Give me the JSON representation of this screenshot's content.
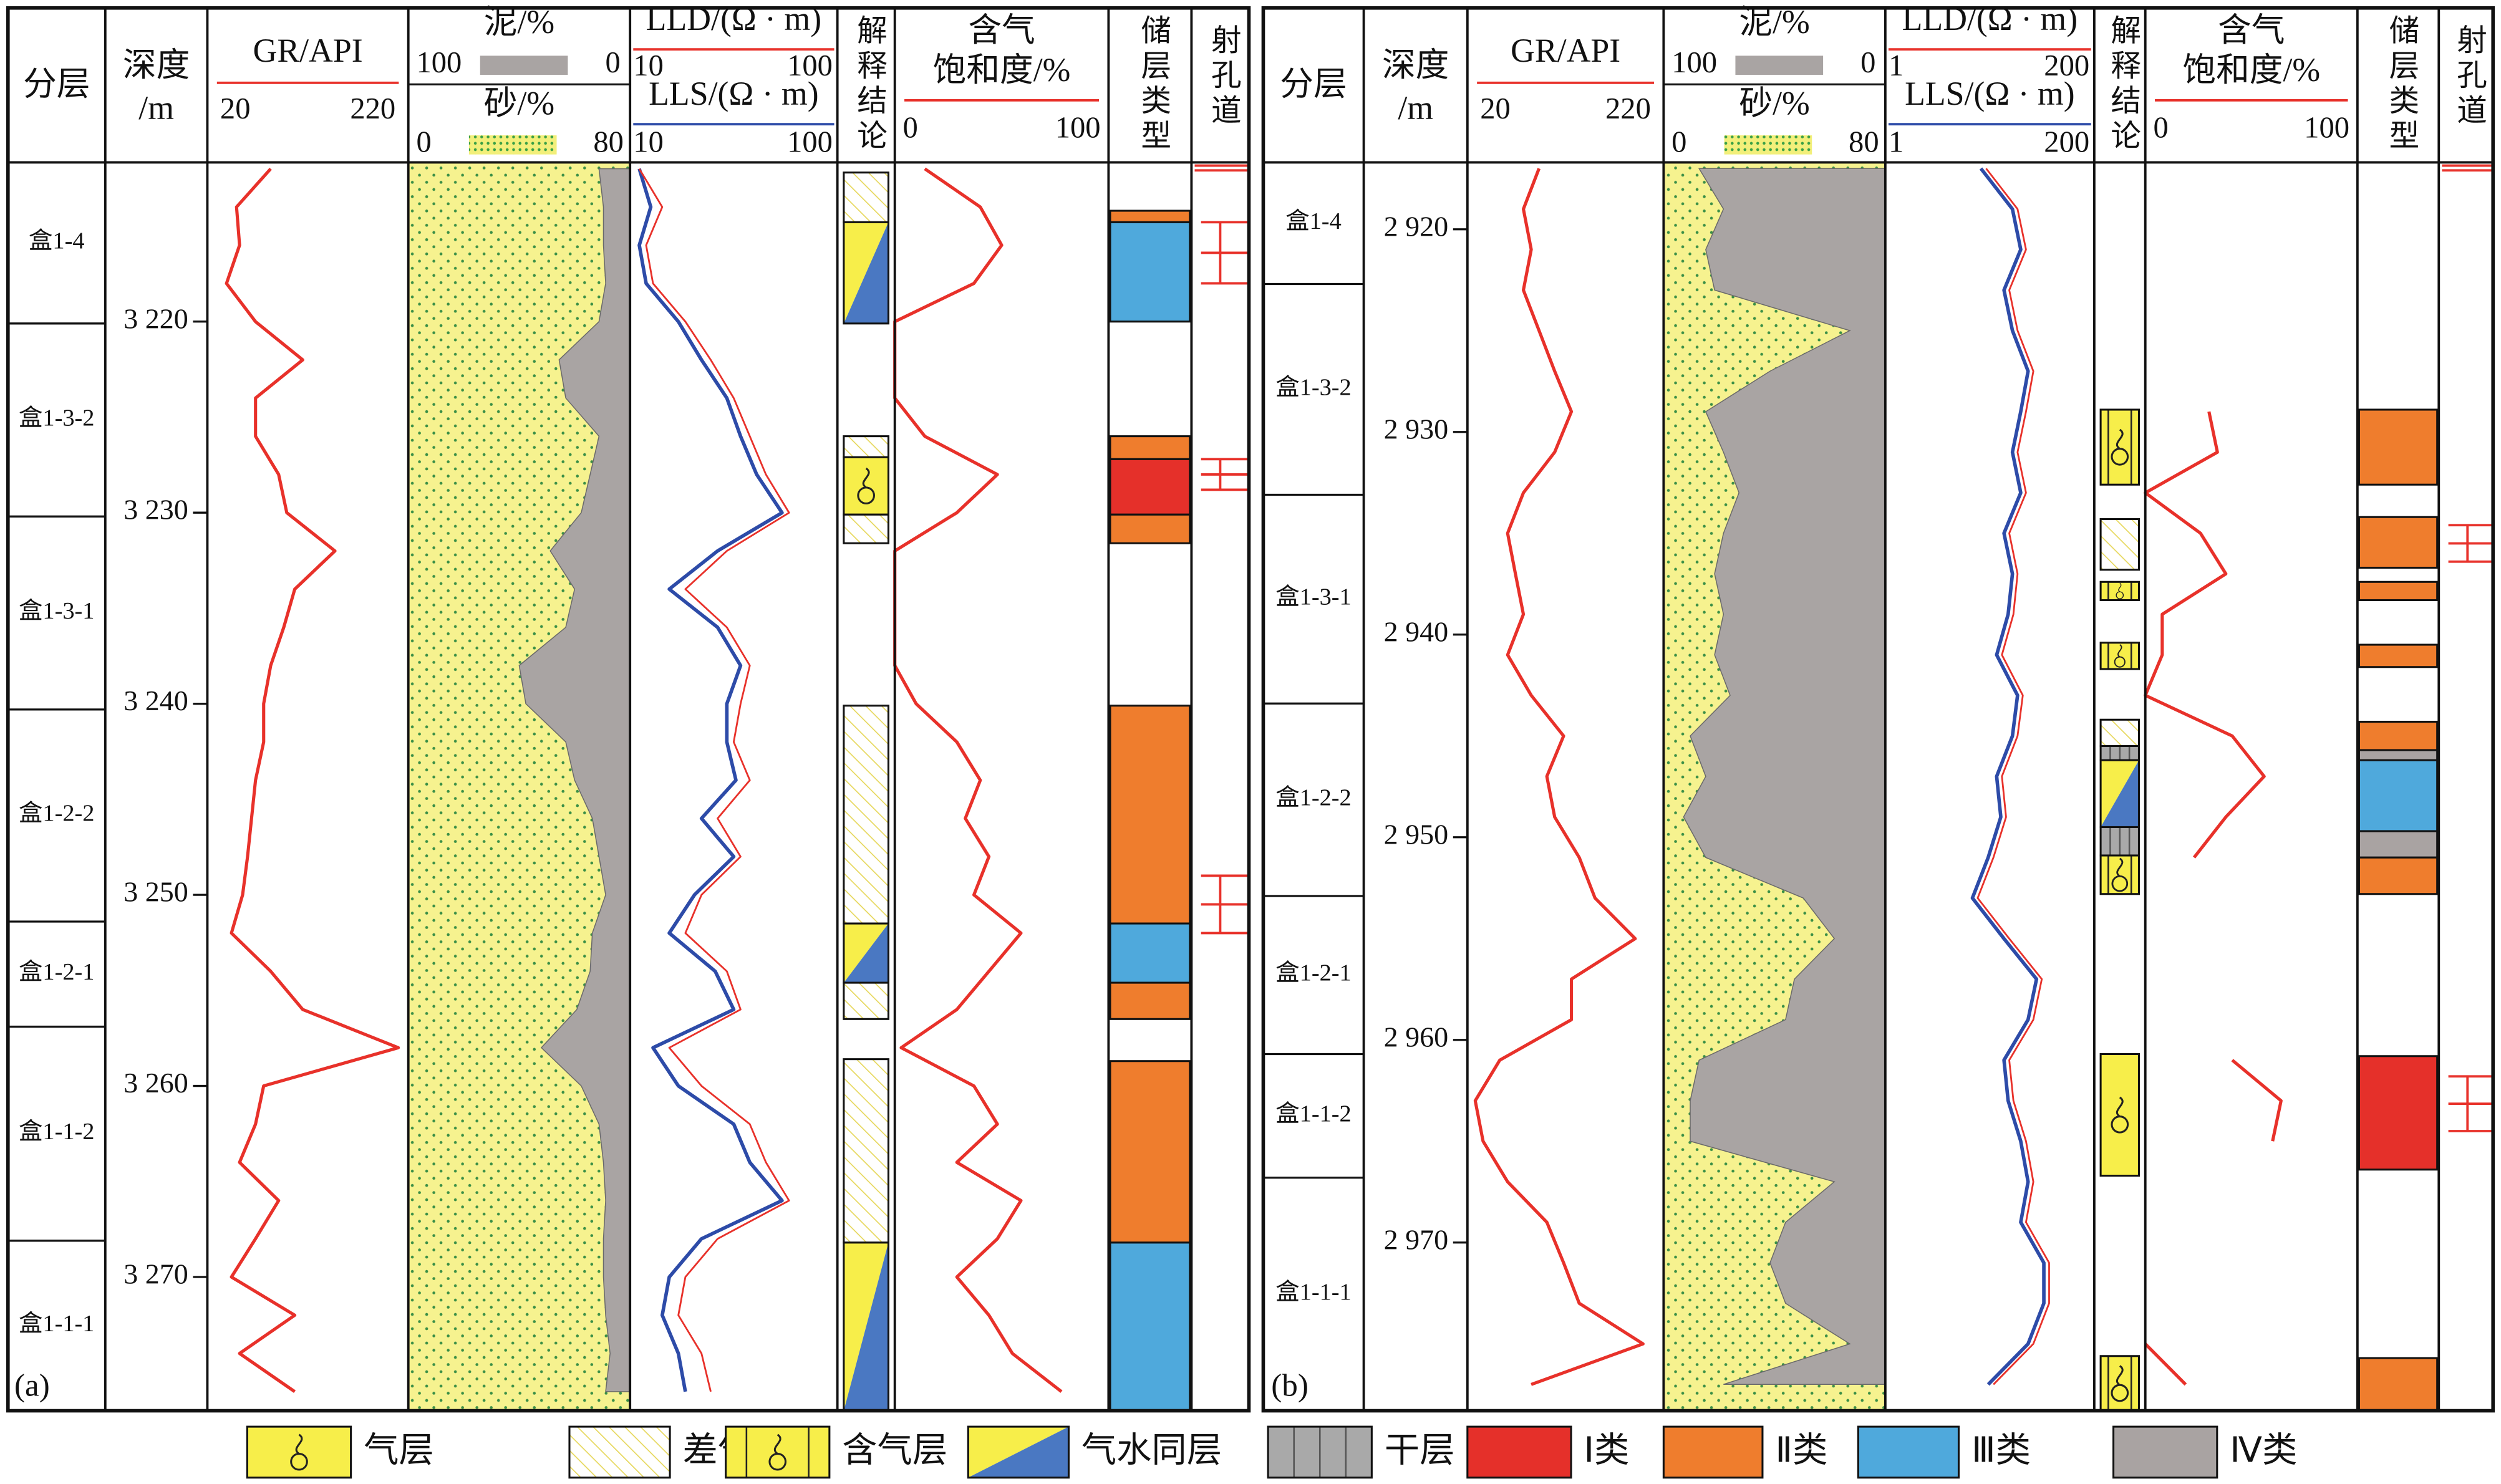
{
  "headers": {
    "zone": "分层",
    "depth": [
      "深度",
      "/m"
    ],
    "gr": "GR/API",
    "shale": "泥/%",
    "sand": "砂/%",
    "lld": "LLD/(Ω · m)",
    "lls": "LLS/(Ω · m)",
    "interpretation": "解释结论",
    "sg": [
      "含气",
      "饱和度/%"
    ],
    "reservoir": "储层类型",
    "perforation": "射孔道"
  },
  "legend": [
    {
      "name": "气层"
    },
    {
      "name": "差气层"
    },
    {
      "name": "含气层"
    },
    {
      "name": "气水同层"
    },
    {
      "name": "干层"
    },
    {
      "name": "Ⅰ类",
      "color": "#e5302a"
    },
    {
      "name": "Ⅱ类",
      "color": "#ef7d2d"
    },
    {
      "name": "Ⅲ类",
      "color": "#4fa9dc"
    },
    {
      "name": "Ⅳ类",
      "color": "#a9a3a2"
    }
  ],
  "chart_data": [
    {
      "type": "well-log",
      "label": "(a)",
      "ylim": [
        3211.67,
        3277
      ],
      "depth_ticks": [
        {
          "value": 3220,
          "label": "3 220"
        },
        {
          "value": 3230,
          "label": "3 230"
        },
        {
          "value": 3240,
          "label": "3 240"
        },
        {
          "value": 3250,
          "label": "3 250"
        },
        {
          "value": 3260,
          "label": "3 260"
        },
        {
          "value": 3270,
          "label": "3 270"
        }
      ],
      "zones": [
        {
          "name": "盒1-4",
          "base": 3220.1
        },
        {
          "name": "盒1-3-2",
          "base": 3230.2
        },
        {
          "name": "盒1-3-1",
          "base": 3240.3
        },
        {
          "name": "盒1-2-2",
          "base": 3251.4
        },
        {
          "name": "盒1-2-1",
          "base": 3256.9
        },
        {
          "name": "盒1-1-2",
          "base": 3268.1
        },
        {
          "name": "盒1-1-1"
        }
      ],
      "depth": [
        3212,
        3214,
        3216,
        3218,
        3220,
        3222,
        3224,
        3226,
        3228,
        3230,
        3232,
        3234,
        3236,
        3238,
        3240,
        3242,
        3244,
        3246,
        3248,
        3250,
        3252,
        3254,
        3256,
        3258,
        3260,
        3262,
        3264,
        3266,
        3268,
        3270,
        3272,
        3274,
        3276
      ],
      "gr": {
        "xlim": [
          20,
          220
        ],
        "color": "#e8312a",
        "values": [
          83,
          49,
          52,
          39,
          68,
          115,
          68,
          68,
          91,
          99,
          147,
          107,
          96,
          83,
          76,
          76,
          68,
          64,
          60,
          55,
          44,
          83,
          115,
          210,
          76,
          68,
          52,
          91,
          68,
          44,
          107,
          52,
          107
        ]
      },
      "shale": {
        "xlim": [
          100,
          0
        ],
        "color": "#a9a4a3",
        "values": [
          14,
          12,
          12,
          11,
          14,
          32,
          29,
          14,
          18,
          22,
          36,
          25,
          29,
          50,
          47,
          29,
          25,
          17,
          14,
          11,
          17,
          18,
          24,
          40,
          22,
          14,
          12,
          11,
          12,
          12,
          11,
          9,
          11
        ]
      },
      "sand": {
        "xlim": [
          0,
          80
        ],
        "color": "#f6f28f"
      },
      "lld": {
        "xlim": [
          10,
          100
        ],
        "color": "#e8312a",
        "values": [
          14,
          24,
          17,
          20,
          34,
          45,
          55,
          62,
          69,
          79,
          52,
          34,
          52,
          62,
          58,
          55,
          62,
          48,
          58,
          41,
          34,
          52,
          58,
          27,
          41,
          62,
          69,
          79,
          48,
          34,
          31,
          41,
          45
        ]
      },
      "lls": {
        "xlim": [
          10,
          100
        ],
        "color": "#2d4ba8",
        "values": [
          14,
          19,
          14,
          17,
          31,
          41,
          52,
          58,
          65,
          76,
          48,
          27,
          48,
          58,
          52,
          52,
          56,
          41,
          55,
          38,
          27,
          47,
          55,
          20,
          31,
          55,
          62,
          76,
          41,
          27,
          24,
          31,
          34
        ]
      },
      "sg": {
        "xlim": [
          0,
          100
        ],
        "color": "#e8312a",
        "values": [
          14,
          40,
          50,
          37,
          0,
          0,
          0,
          14,
          48,
          29,
          0,
          0,
          0,
          0,
          10,
          29,
          40,
          33,
          44,
          37,
          59,
          44,
          29,
          3,
          37,
          48,
          29,
          59,
          48,
          29,
          44,
          55,
          78
        ]
      },
      "interpretation": [
        {
          "type": "差气层",
          "from": 3212.2,
          "to": 3214.8
        },
        {
          "type": "气水同层",
          "from": 3214.8,
          "to": 3220.1
        },
        {
          "type": "差气层",
          "from": 3226,
          "to": 3227.1
        },
        {
          "type": "气层",
          "from": 3227.1,
          "to": 3230.1
        },
        {
          "type": "差气层",
          "from": 3230.1,
          "to": 3231.6
        },
        {
          "type": "差气层",
          "from": 3240.1,
          "to": 3251.5
        },
        {
          "type": "气水同层",
          "from": 3251.5,
          "to": 3254.6
        },
        {
          "type": "差气层",
          "from": 3254.6,
          "to": 3256.5
        },
        {
          "type": "差气层",
          "from": 3258.6,
          "to": 3268.2
        },
        {
          "type": "气水同层",
          "from": 3268.2,
          "to": 3277
        }
      ],
      "reservoir": [
        {
          "type": "Ⅱ类",
          "from": 3214.2,
          "to": 3214.8
        },
        {
          "type": "Ⅲ类",
          "from": 3214.8,
          "to": 3220
        },
        {
          "type": "Ⅱ类",
          "from": 3226,
          "to": 3227.2
        },
        {
          "type": "Ⅰ类",
          "from": 3227.2,
          "to": 3230.1
        },
        {
          "type": "Ⅱ类",
          "from": 3230.1,
          "to": 3231.6
        },
        {
          "type": "Ⅱ类",
          "from": 3240.1,
          "to": 3251.5
        },
        {
          "type": "Ⅲ类",
          "from": 3251.5,
          "to": 3254.6
        },
        {
          "type": "Ⅱ类",
          "from": 3254.6,
          "to": 3256.5
        },
        {
          "type": "Ⅱ类",
          "from": 3258.7,
          "to": 3268.2
        },
        {
          "type": "Ⅲ类",
          "from": 3268.2,
          "to": 3277
        }
      ],
      "perforation": [
        {
          "from": 3214.8,
          "to": 3218
        },
        {
          "from": 3227.2,
          "to": 3228.8
        },
        {
          "from": 3249,
          "to": 3252
        }
      ]
    },
    {
      "type": "well-log",
      "label": "(b)",
      "ylim": [
        2916.7,
        2978.3
      ],
      "depth_ticks": [
        {
          "value": 2920,
          "label": "2 920"
        },
        {
          "value": 2930,
          "label": "2 930"
        },
        {
          "value": 2940,
          "label": "2 940"
        },
        {
          "value": 2950,
          "label": "2 950"
        },
        {
          "value": 2960,
          "label": "2 960"
        },
        {
          "value": 2970,
          "label": "2 970"
        }
      ],
      "zones": [
        {
          "name": "盒1-4",
          "base": 2922.7
        },
        {
          "name": "盒1-3-2",
          "base": 2933.1
        },
        {
          "name": "盒1-3-1",
          "base": 2943.4
        },
        {
          "name": "盒1-2-2",
          "base": 2952.9
        },
        {
          "name": "盒1-2-1",
          "base": 2960.7
        },
        {
          "name": "盒1-1-2",
          "base": 2966.8
        },
        {
          "name": "盒1-1-1"
        }
      ],
      "depth": [
        2917,
        2919,
        2921,
        2923,
        2925,
        2927,
        2929,
        2931,
        2933,
        2935,
        2937,
        2939,
        2941,
        2943,
        2945,
        2947,
        2949,
        2951,
        2953,
        2955,
        2957,
        2959,
        2961,
        2963,
        2965,
        2967,
        2969,
        2971,
        2973,
        2975,
        2977
      ],
      "gr": {
        "xlim": [
          20,
          220
        ],
        "color": "#e8312a",
        "values": [
          93,
          77,
          85,
          77,
          93,
          109,
          126,
          109,
          77,
          61,
          69,
          77,
          61,
          85,
          118,
          101,
          109,
          134,
          150,
          191,
          126,
          126,
          53,
          28,
          36,
          61,
          101,
          118,
          134,
          199,
          85
        ]
      },
      "shale": {
        "xlim": [
          100,
          0
        ],
        "color": "#a9a4a3",
        "values": [
          84,
          73,
          81,
          77,
          16,
          52,
          81,
          73,
          66,
          73,
          77,
          73,
          77,
          70,
          88,
          81,
          91,
          81,
          37,
          23,
          41,
          45,
          84,
          88,
          88,
          23,
          45,
          52,
          45,
          16,
          73
        ]
      },
      "sand": {
        "xlim": [
          0,
          80
        ],
        "color": "#f6f28f"
      },
      "lld": {
        "xlim": [
          1,
          200
        ],
        "color": "#e8312a",
        "values": [
          97,
          127,
          135,
          119,
          127,
          142,
          135,
          127,
          135,
          119,
          127,
          123,
          112,
          132,
          127,
          112,
          116,
          104,
          89,
          119,
          150,
          142,
          119,
          123,
          135,
          142,
          135,
          157,
          157,
          142,
          104
        ]
      },
      "lls": {
        "xlim": [
          1,
          200
        ],
        "color": "#2d4ba8",
        "values": [
          92,
          122,
          130,
          114,
          122,
          137,
          130,
          122,
          130,
          114,
          122,
          118,
          107,
          127,
          122,
          107,
          111,
          99,
          84,
          114,
          145,
          137,
          114,
          118,
          130,
          137,
          130,
          152,
          152,
          137,
          99
        ]
      },
      "sg": {
        "xlim": [
          0,
          100
        ],
        "color": "#e8312a",
        "values": [
          null,
          null,
          null,
          null,
          null,
          null,
          30,
          34,
          0,
          26,
          38,
          8,
          8,
          0,
          41,
          56,
          38,
          23,
          null,
          null,
          null,
          null,
          41,
          64,
          60,
          null,
          null,
          null,
          null,
          0,
          19
        ]
      },
      "interpretation": [
        {
          "type": "含气层",
          "from": 2928.9,
          "to": 2932.6
        },
        {
          "type": "差气层",
          "from": 2934.3,
          "to": 2936.8
        },
        {
          "type": "含气层",
          "from": 2937.4,
          "to": 2938.3
        },
        {
          "type": "含气层",
          "from": 2940.4,
          "to": 2941.7
        },
        {
          "type": "差气层",
          "from": 2944.2,
          "to": 2945.5
        },
        {
          "type": "干层",
          "from": 2945.5,
          "to": 2946.2
        },
        {
          "type": "气水同层",
          "from": 2946.2,
          "to": 2949.5
        },
        {
          "type": "干层",
          "from": 2949.5,
          "to": 2950.9
        },
        {
          "type": "含气层",
          "from": 2950.9,
          "to": 2952.8
        },
        {
          "type": "气层",
          "from": 2960.7,
          "to": 2966.7
        },
        {
          "type": "含气层",
          "from": 2975.6,
          "to": 2978.3
        }
      ],
      "reservoir": [
        {
          "type": "Ⅱ类",
          "from": 2928.9,
          "to": 2932.6
        },
        {
          "type": "Ⅱ类",
          "from": 2934.2,
          "to": 2936.7
        },
        {
          "type": "Ⅱ类",
          "from": 2937.4,
          "to": 2938.3
        },
        {
          "type": "Ⅱ类",
          "from": 2940.5,
          "to": 2941.6
        },
        {
          "type": "Ⅱ类",
          "from": 2944.3,
          "to": 2945.7
        },
        {
          "type": "Ⅳ类",
          "from": 2945.7,
          "to": 2946.2
        },
        {
          "type": "Ⅲ类",
          "from": 2946.2,
          "to": 2949.7
        },
        {
          "type": "Ⅳ类",
          "from": 2949.7,
          "to": 2951
        },
        {
          "type": "Ⅱ类",
          "from": 2951,
          "to": 2952.8
        },
        {
          "type": "Ⅰ类",
          "from": 2960.8,
          "to": 2966.4
        },
        {
          "type": "Ⅱ类",
          "from": 2975.7,
          "to": 2978.3
        }
      ],
      "perforation": [
        {
          "from": 2934.6,
          "to": 2936.4
        },
        {
          "from": 2961.8,
          "to": 2964.5
        }
      ]
    }
  ]
}
